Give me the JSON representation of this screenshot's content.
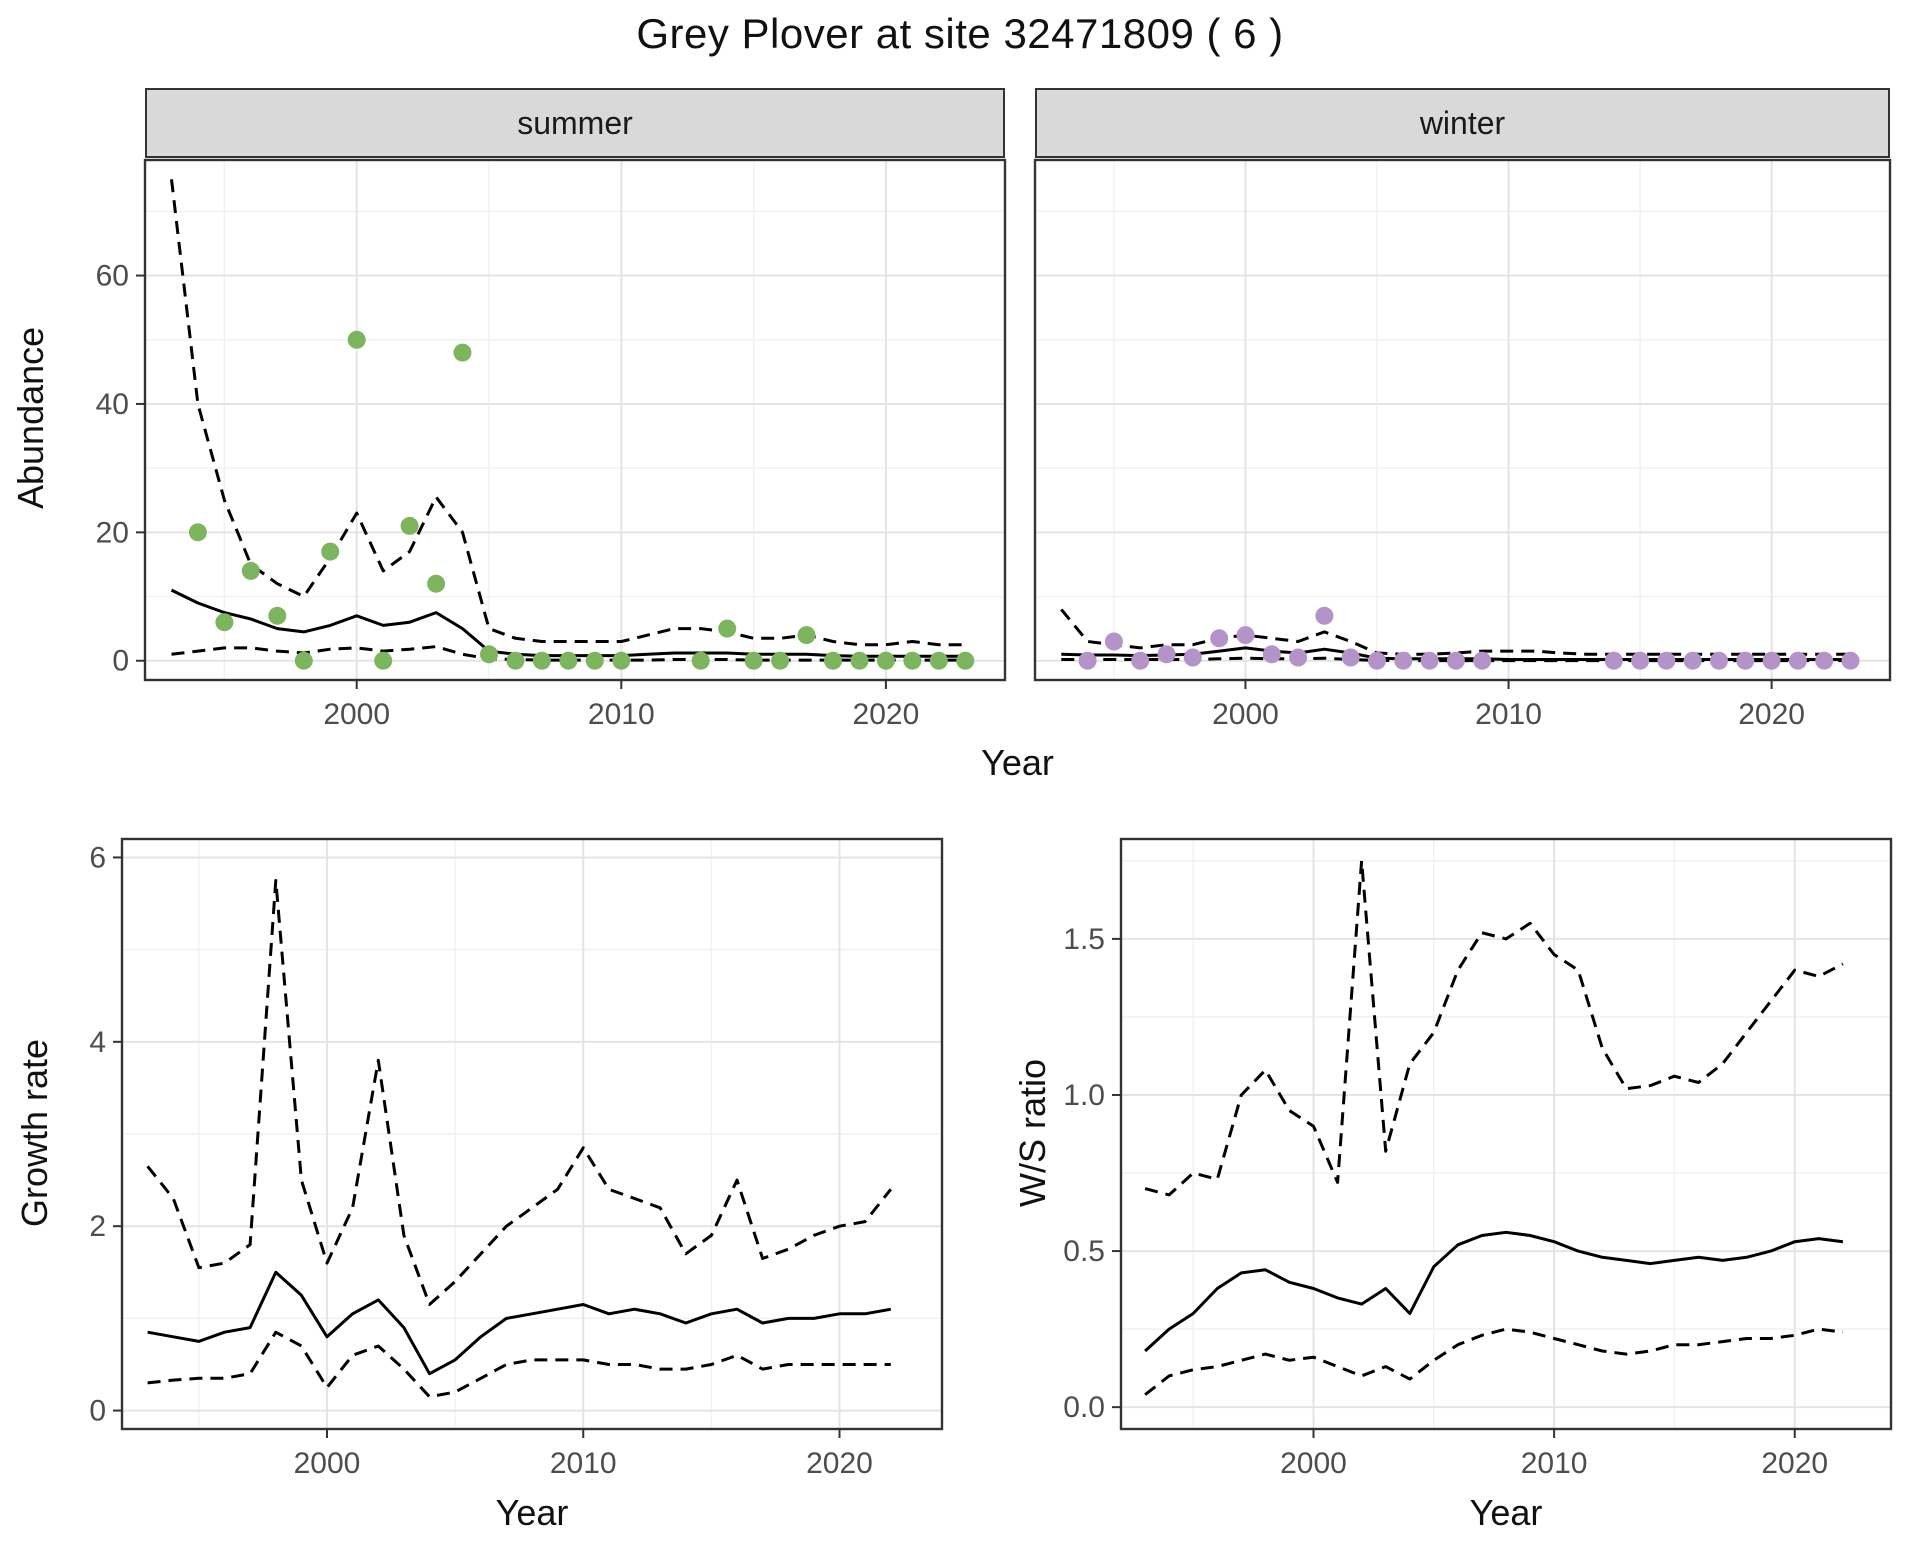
{
  "title": "Grey Plover at site 32471809 ( 6 )",
  "axis_labels": {
    "abundance_y": "Abundance",
    "top_x": "Year"
  },
  "colors": {
    "summer_point": "#7cb55e",
    "winter_point": "#b493c8",
    "line": "#000000",
    "grid_major": "#e4e4e4",
    "grid_minor": "#f1f1f1",
    "panel_border": "#333333",
    "strip_bg": "#d9d9d9",
    "tick_text": "#4d4d4d"
  },
  "chart_data": [
    {
      "id": "abundance-summer",
      "type": "line",
      "facet": "summer",
      "xlabel": "Year",
      "ylabel": "Abundance",
      "xlim": [
        1992,
        2024.5
      ],
      "ylim": [
        -3,
        78
      ],
      "xticks": [
        2000,
        2010,
        2020
      ],
      "xtick_labels": [
        "2000",
        "2010",
        "2020"
      ],
      "xminor": [
        1995,
        2005,
        2015
      ],
      "yticks": [
        0,
        20,
        40,
        60
      ],
      "ytick_labels": [
        "0",
        "20",
        "40",
        "60"
      ],
      "yminor": [
        10,
        30,
        50,
        70
      ],
      "series": [
        {
          "name": "upper-ci",
          "style": "dashed",
          "x": [
            1993,
            1994,
            1995,
            1996,
            1997,
            1998,
            1999,
            2000,
            2001,
            2002,
            2003,
            2004,
            2005,
            2006,
            2007,
            2008,
            2009,
            2010,
            2011,
            2012,
            2013,
            2014,
            2015,
            2016,
            2017,
            2018,
            2019,
            2020,
            2021,
            2022,
            2023
          ],
          "y": [
            75,
            40,
            25,
            15,
            12,
            10,
            16,
            23,
            14,
            17,
            25.5,
            20,
            5,
            3.5,
            3,
            3,
            3,
            3,
            4,
            5,
            5,
            4.5,
            3.5,
            3.5,
            4,
            3,
            2.5,
            2.5,
            3,
            2.5,
            2.5
          ]
        },
        {
          "name": "fit",
          "style": "solid",
          "x": [
            1993,
            1994,
            1995,
            1996,
            1997,
            1998,
            1999,
            2000,
            2001,
            2002,
            2003,
            2004,
            2005,
            2006,
            2007,
            2008,
            2009,
            2010,
            2011,
            2012,
            2013,
            2014,
            2015,
            2016,
            2017,
            2018,
            2019,
            2020,
            2021,
            2022,
            2023
          ],
          "y": [
            11,
            9,
            7.5,
            6.5,
            5,
            4.5,
            5.5,
            7,
            5.5,
            6,
            7.5,
            5,
            1.5,
            1,
            0.8,
            0.8,
            0.8,
            0.8,
            1,
            1.2,
            1.2,
            1.2,
            1,
            1,
            1,
            0.8,
            0.7,
            0.7,
            0.7,
            0.7,
            0.7
          ]
        },
        {
          "name": "lower-ci",
          "style": "dashed",
          "x": [
            1993,
            1994,
            1995,
            1996,
            1997,
            1998,
            1999,
            2000,
            2001,
            2002,
            2003,
            2004,
            2005,
            2006,
            2007,
            2008,
            2009,
            2010,
            2011,
            2012,
            2013,
            2014,
            2015,
            2016,
            2017,
            2018,
            2019,
            2020,
            2021,
            2022,
            2023
          ],
          "y": [
            1,
            1.5,
            2,
            2,
            1.5,
            1.2,
            1.8,
            2,
            1.5,
            1.8,
            2.2,
            1,
            0.3,
            0.2,
            0.1,
            0.1,
            0.1,
            0.1,
            0.1,
            0.2,
            0.2,
            0.2,
            0.1,
            0.1,
            0.1,
            0.1,
            0.1,
            0.1,
            0.1,
            0.1,
            0.1
          ]
        }
      ],
      "points": {
        "name": "observed-counts-summer",
        "color_key": "summer_point",
        "x": [
          1994,
          1995,
          1996,
          1997,
          1998,
          1999,
          2000,
          2001,
          2002,
          2003,
          2004,
          2005,
          2006,
          2007,
          2008,
          2009,
          2010,
          2013,
          2014,
          2015,
          2016,
          2017,
          2018,
          2019,
          2020,
          2021,
          2022,
          2023
        ],
        "y": [
          20,
          6,
          14,
          7,
          0,
          17,
          50,
          0,
          21,
          12,
          48,
          1,
          0,
          0,
          0,
          0,
          0,
          0,
          5,
          0,
          0,
          4,
          0,
          0,
          0,
          0,
          0,
          0
        ]
      }
    },
    {
      "id": "abundance-winter",
      "type": "line",
      "facet": "winter",
      "xlabel": "Year",
      "ylabel": "Abundance",
      "xlim": [
        1992,
        2024.5
      ],
      "ylim": [
        -3,
        78
      ],
      "xticks": [
        2000,
        2010,
        2020
      ],
      "xtick_labels": [
        "2000",
        "2010",
        "2020"
      ],
      "xminor": [
        1995,
        2005,
        2015
      ],
      "yticks": [
        0,
        20,
        40,
        60
      ],
      "ytick_labels": [
        "0",
        "20",
        "40",
        "60"
      ],
      "yminor": [
        10,
        30,
        50,
        70
      ],
      "series": [
        {
          "name": "upper-ci",
          "style": "dashed",
          "x": [
            1993,
            1994,
            1995,
            1996,
            1997,
            1998,
            1999,
            2000,
            2001,
            2002,
            2003,
            2004,
            2005,
            2006,
            2007,
            2008,
            2009,
            2010,
            2011,
            2012,
            2013,
            2014,
            2015,
            2016,
            2017,
            2018,
            2019,
            2020,
            2021,
            2022,
            2023
          ],
          "y": [
            8,
            3,
            2.5,
            2,
            2.5,
            2.5,
            3.5,
            4,
            3.5,
            3,
            4.5,
            3,
            1.2,
            1,
            1,
            1.2,
            1.5,
            1.5,
            1.5,
            1.2,
            1,
            1,
            1,
            1,
            1,
            1,
            1,
            1,
            1,
            1,
            1
          ]
        },
        {
          "name": "fit",
          "style": "solid",
          "x": [
            1993,
            1994,
            1995,
            1996,
            1997,
            1998,
            1999,
            2000,
            2001,
            2002,
            2003,
            2004,
            2005,
            2006,
            2007,
            2008,
            2009,
            2010,
            2011,
            2012,
            2013,
            2014,
            2015,
            2016,
            2017,
            2018,
            2019,
            2020,
            2021,
            2022,
            2023
          ],
          "y": [
            1,
            0.9,
            0.9,
            0.8,
            0.9,
            1,
            1.5,
            2,
            1.5,
            1.2,
            1.8,
            1.2,
            0.4,
            0.3,
            0.3,
            0.3,
            0.3,
            0.2,
            0.2,
            0.2,
            0.2,
            0.2,
            0.2,
            0.2,
            0.2,
            0.2,
            0.2,
            0.2,
            0.2,
            0.2,
            0.2
          ]
        },
        {
          "name": "lower-ci",
          "style": "dashed",
          "x": [
            1993,
            1994,
            1995,
            1996,
            1997,
            1998,
            1999,
            2000,
            2001,
            2002,
            2003,
            2004,
            2005,
            2006,
            2007,
            2008,
            2009,
            2010,
            2011,
            2012,
            2013,
            2014,
            2015,
            2016,
            2017,
            2018,
            2019,
            2020,
            2021,
            2022,
            2023
          ],
          "y": [
            0.2,
            0.2,
            0.2,
            0.2,
            0.2,
            0.2,
            0.3,
            0.4,
            0.3,
            0.3,
            0.4,
            0.2,
            0.05,
            0.02,
            0.02,
            0.02,
            0.02,
            0.02,
            0.02,
            0.02,
            0.02,
            0.02,
            0.02,
            0.02,
            0.02,
            0.02,
            0.02,
            0.02,
            0.02,
            0.02,
            0.02
          ]
        }
      ],
      "points": {
        "name": "observed-counts-winter",
        "color_key": "winter_point",
        "x": [
          1994,
          1995,
          1996,
          1997,
          1998,
          1999,
          2000,
          2001,
          2002,
          2003,
          2004,
          2005,
          2006,
          2007,
          2008,
          2009,
          2014,
          2015,
          2016,
          2017,
          2018,
          2019,
          2020,
          2021,
          2022,
          2023
        ],
        "y": [
          0,
          3,
          0,
          1,
          0.5,
          3.5,
          4,
          1,
          0.5,
          7,
          0.5,
          0,
          0,
          0,
          0,
          0,
          0,
          0,
          0,
          0,
          0,
          0,
          0,
          0,
          0,
          0
        ]
      }
    },
    {
      "id": "growth-rate",
      "type": "line",
      "facet": "",
      "xlabel": "Year",
      "ylabel": "Growth rate",
      "xlim": [
        1992,
        2024
      ],
      "ylim": [
        -0.2,
        6.2
      ],
      "xticks": [
        2000,
        2010,
        2020
      ],
      "xtick_labels": [
        "2000",
        "2010",
        "2020"
      ],
      "xminor": [
        1995,
        2005,
        2015
      ],
      "yticks": [
        0,
        2,
        4,
        6
      ],
      "ytick_labels": [
        "0",
        "2",
        "4",
        "6"
      ],
      "yminor": [
        1,
        3,
        5
      ],
      "series": [
        {
          "name": "upper-ci",
          "style": "dashed",
          "x": [
            1993,
            1994,
            1995,
            1996,
            1997,
            1998,
            1999,
            2000,
            2001,
            2002,
            2003,
            2004,
            2005,
            2006,
            2007,
            2008,
            2009,
            2010,
            2011,
            2012,
            2013,
            2014,
            2015,
            2016,
            2017,
            2018,
            2019,
            2020,
            2021,
            2022
          ],
          "y": [
            2.65,
            2.3,
            1.55,
            1.6,
            1.8,
            5.75,
            2.5,
            1.6,
            2.2,
            3.8,
            1.9,
            1.15,
            1.4,
            1.7,
            2.0,
            2.2,
            2.4,
            2.85,
            2.4,
            2.3,
            2.2,
            1.7,
            1.9,
            2.5,
            1.65,
            1.75,
            1.9,
            2.0,
            2.05,
            2.4
          ]
        },
        {
          "name": "fit",
          "style": "solid",
          "x": [
            1993,
            1994,
            1995,
            1996,
            1997,
            1998,
            1999,
            2000,
            2001,
            2002,
            2003,
            2004,
            2005,
            2006,
            2007,
            2008,
            2009,
            2010,
            2011,
            2012,
            2013,
            2014,
            2015,
            2016,
            2017,
            2018,
            2019,
            2020,
            2021,
            2022
          ],
          "y": [
            0.85,
            0.8,
            0.75,
            0.85,
            0.9,
            1.5,
            1.25,
            0.8,
            1.05,
            1.2,
            0.9,
            0.4,
            0.55,
            0.8,
            1.0,
            1.05,
            1.1,
            1.15,
            1.05,
            1.1,
            1.05,
            0.95,
            1.05,
            1.1,
            0.95,
            1.0,
            1.0,
            1.05,
            1.05,
            1.1
          ]
        },
        {
          "name": "lower-ci",
          "style": "dashed",
          "x": [
            1993,
            1994,
            1995,
            1996,
            1997,
            1998,
            1999,
            2000,
            2001,
            2002,
            2003,
            2004,
            2005,
            2006,
            2007,
            2008,
            2009,
            2010,
            2011,
            2012,
            2013,
            2014,
            2015,
            2016,
            2017,
            2018,
            2019,
            2020,
            2021,
            2022
          ],
          "y": [
            0.3,
            0.33,
            0.35,
            0.35,
            0.4,
            0.85,
            0.7,
            0.25,
            0.6,
            0.7,
            0.45,
            0.15,
            0.2,
            0.35,
            0.5,
            0.55,
            0.55,
            0.55,
            0.5,
            0.5,
            0.45,
            0.45,
            0.5,
            0.6,
            0.45,
            0.5,
            0.5,
            0.5,
            0.5,
            0.5
          ]
        }
      ],
      "points": null
    },
    {
      "id": "ws-ratio",
      "type": "line",
      "facet": "",
      "xlabel": "Year",
      "ylabel": "W/S ratio",
      "xlim": [
        1992,
        2024
      ],
      "ylim": [
        -0.07,
        1.82
      ],
      "xticks": [
        2000,
        2010,
        2020
      ],
      "xtick_labels": [
        "2000",
        "2010",
        "2020"
      ],
      "xminor": [
        1995,
        2005,
        2015
      ],
      "yticks": [
        0,
        0.5,
        1.0,
        1.5
      ],
      "ytick_labels": [
        "0.0",
        "0.5",
        "1.0",
        "1.5"
      ],
      "yminor": [
        0.25,
        0.75,
        1.25,
        1.75
      ],
      "series": [
        {
          "name": "upper-ci",
          "style": "dashed",
          "x": [
            1993,
            1994,
            1995,
            1996,
            1997,
            1998,
            1999,
            2000,
            2001,
            2002,
            2003,
            2004,
            2005,
            2006,
            2007,
            2008,
            2009,
            2010,
            2011,
            2012,
            2013,
            2014,
            2015,
            2016,
            2017,
            2018,
            2019,
            2020,
            2021,
            2022
          ],
          "y": [
            0.7,
            0.68,
            0.75,
            0.73,
            1.0,
            1.08,
            0.95,
            0.9,
            0.72,
            1.75,
            0.82,
            1.1,
            1.2,
            1.4,
            1.52,
            1.5,
            1.55,
            1.45,
            1.4,
            1.15,
            1.02,
            1.03,
            1.06,
            1.04,
            1.1,
            1.2,
            1.3,
            1.4,
            1.38,
            1.42
          ]
        },
        {
          "name": "fit",
          "style": "solid",
          "x": [
            1993,
            1994,
            1995,
            1996,
            1997,
            1998,
            1999,
            2000,
            2001,
            2002,
            2003,
            2004,
            2005,
            2006,
            2007,
            2008,
            2009,
            2010,
            2011,
            2012,
            2013,
            2014,
            2015,
            2016,
            2017,
            2018,
            2019,
            2020,
            2021,
            2022
          ],
          "y": [
            0.18,
            0.25,
            0.3,
            0.38,
            0.43,
            0.44,
            0.4,
            0.38,
            0.35,
            0.33,
            0.38,
            0.3,
            0.45,
            0.52,
            0.55,
            0.56,
            0.55,
            0.53,
            0.5,
            0.48,
            0.47,
            0.46,
            0.47,
            0.48,
            0.47,
            0.48,
            0.5,
            0.53,
            0.54,
            0.53
          ]
        },
        {
          "name": "lower-ci",
          "style": "dashed",
          "x": [
            1993,
            1994,
            1995,
            1996,
            1997,
            1998,
            1999,
            2000,
            2001,
            2002,
            2003,
            2004,
            2005,
            2006,
            2007,
            2008,
            2009,
            2010,
            2011,
            2012,
            2013,
            2014,
            2015,
            2016,
            2017,
            2018,
            2019,
            2020,
            2021,
            2022
          ],
          "y": [
            0.04,
            0.1,
            0.12,
            0.13,
            0.15,
            0.17,
            0.15,
            0.16,
            0.13,
            0.1,
            0.13,
            0.09,
            0.15,
            0.2,
            0.23,
            0.25,
            0.24,
            0.22,
            0.2,
            0.18,
            0.17,
            0.18,
            0.2,
            0.2,
            0.21,
            0.22,
            0.22,
            0.23,
            0.25,
            0.24
          ]
        }
      ],
      "points": null
    }
  ]
}
